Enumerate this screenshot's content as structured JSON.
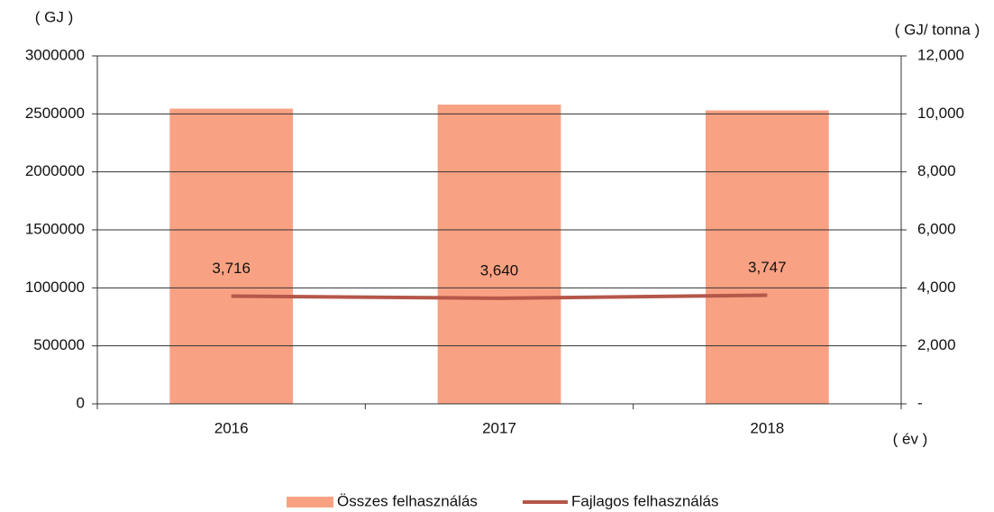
{
  "chart_data": {
    "type": "bar",
    "categories": [
      "2016",
      "2017",
      "2018"
    ],
    "series": [
      {
        "name": "Összes felhasználás",
        "type": "bar",
        "color": "#f9a283",
        "values": [
          2545000,
          2580000,
          2530000
        ]
      },
      {
        "name": "Fajlagos felhasználás",
        "type": "line",
        "axis": "y2",
        "color": "#b5574a",
        "values": [
          3716,
          3640,
          3747
        ],
        "value_labels": [
          "3,716",
          "3,640",
          "3,747"
        ]
      }
    ],
    "y_label": "( GJ )",
    "y2_label": "( GJ/ tonna )",
    "x_label": "( év )",
    "ylim": [
      0,
      3000000
    ],
    "yticks": [
      0,
      500000,
      1000000,
      1500000,
      2000000,
      2500000,
      3000000
    ],
    "y2lim": [
      0,
      12000
    ],
    "y2ticks": [
      {
        "value": 0,
        "label": "-"
      },
      {
        "value": 2000,
        "label": "2,000"
      },
      {
        "value": 4000,
        "label": "4,000"
      },
      {
        "value": 6000,
        "label": "6,000"
      },
      {
        "value": 8000,
        "label": "8,000"
      },
      {
        "value": 10000,
        "label": "10,000"
      },
      {
        "value": 12000,
        "label": "12,000"
      }
    ],
    "grid": true,
    "legend": "bottom"
  }
}
